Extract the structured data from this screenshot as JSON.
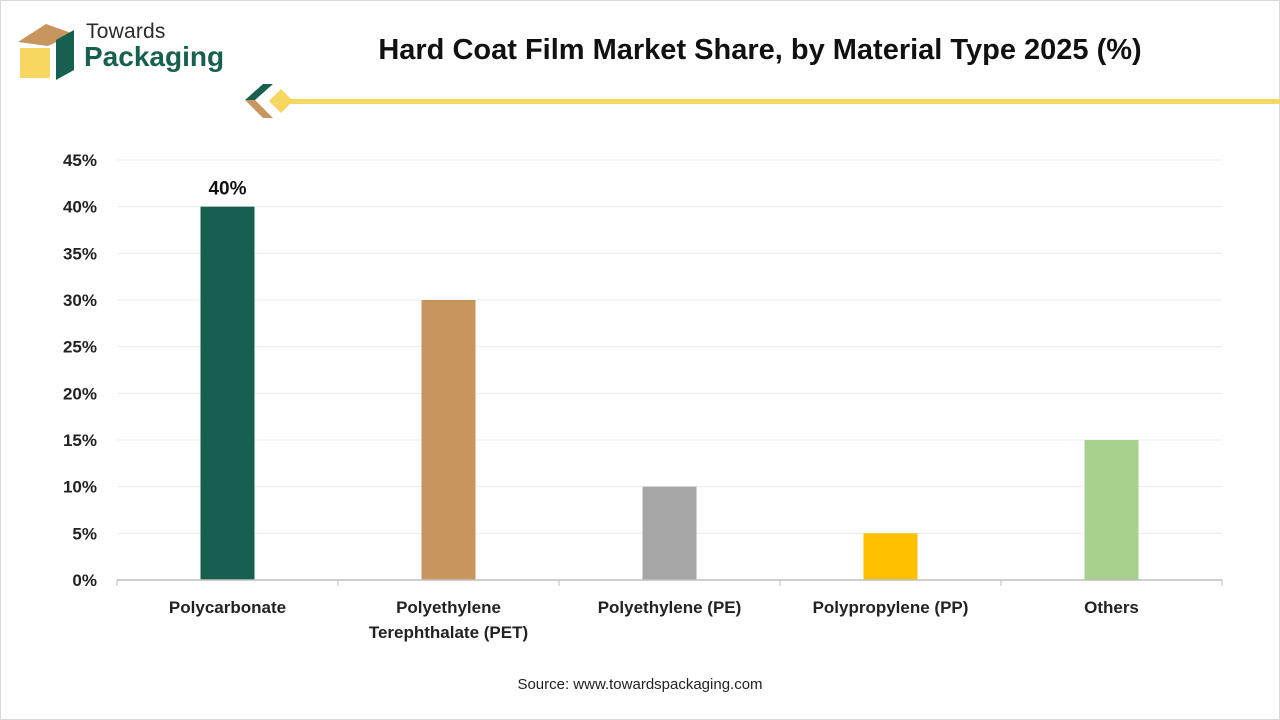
{
  "brand": {
    "line1": "Towards",
    "line2": "Packaging",
    "colors": {
      "green": "#17604f",
      "tan": "#c8955e",
      "yellow": "#f7d762"
    }
  },
  "source": "Source: www.towardspackaging.com",
  "chart_data": {
    "type": "bar",
    "title": "Hard Coat Film Market Share, by Material Type 2025 (%)",
    "categories": [
      [
        "Polycarbonate"
      ],
      [
        "Polyethylene",
        "Terephthalate (PET)"
      ],
      [
        "Polyethylene (PE)"
      ],
      [
        "Polypropylene (PP)"
      ],
      [
        "Others"
      ]
    ],
    "values": [
      40,
      30,
      10,
      5,
      15
    ],
    "colors": [
      "#17604f",
      "#c8955e",
      "#a6a6a6",
      "#ffc000",
      "#a9d18e"
    ],
    "data_labels": [
      "40%",
      "",
      "",
      "",
      ""
    ],
    "ylim": [
      0,
      45
    ],
    "yticks": [
      0,
      5,
      10,
      15,
      20,
      25,
      30,
      35,
      40,
      45
    ],
    "ytick_suffix": "%",
    "xlabel": "",
    "ylabel": "",
    "grid": true,
    "legend": "none"
  }
}
